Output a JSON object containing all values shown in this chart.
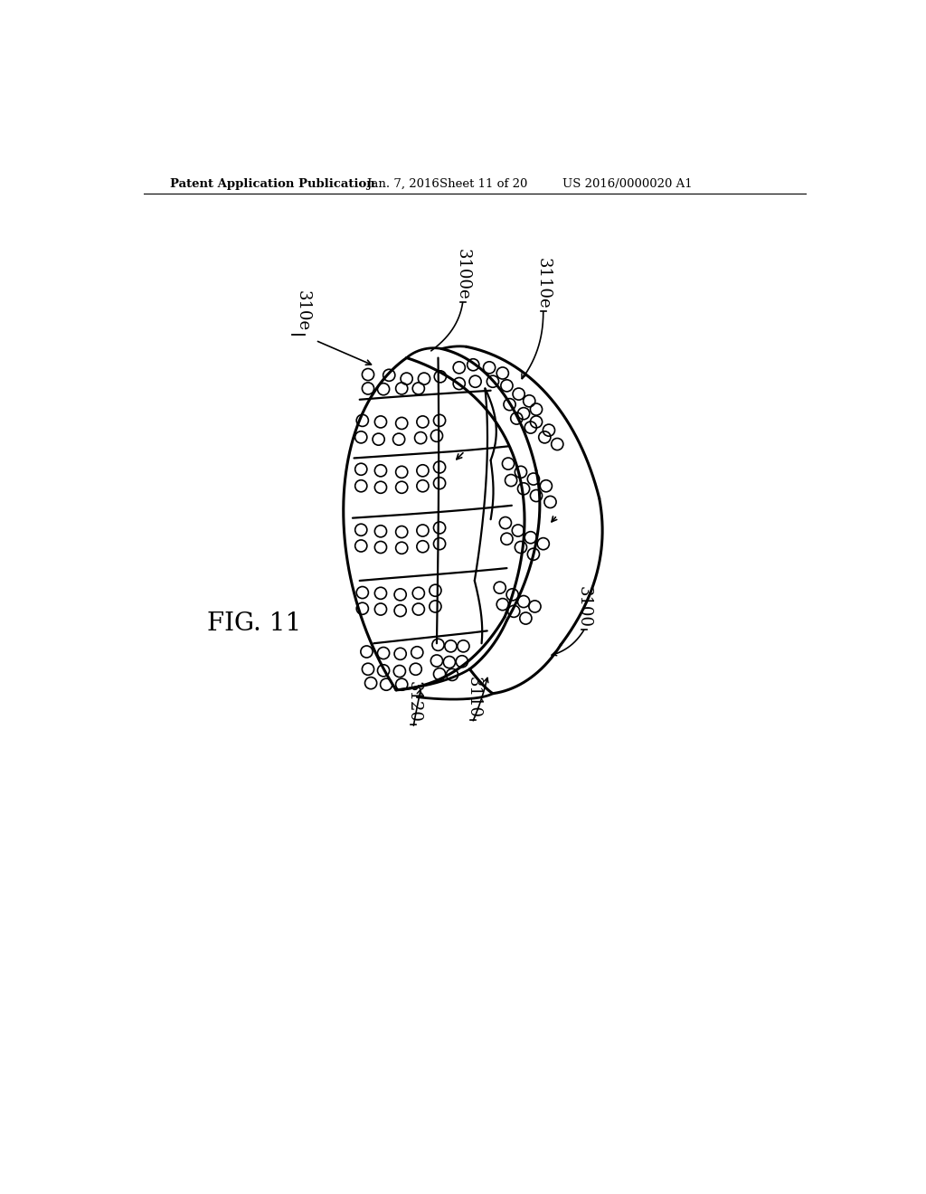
{
  "bg_color": "#ffffff",
  "line_color": "#000000",
  "header_text": "Patent Application Publication",
  "header_date": "Jan. 7, 2016",
  "header_sheet": "Sheet 11 of 20",
  "header_patent": "US 2016/0000020 A1",
  "fig_label": "FIG. 11",
  "label_310e": "310e",
  "label_3100e": "3100e",
  "label_3110e": "3110e",
  "label_3100": "3100",
  "label_3110": "3110",
  "label_3120": "3120"
}
